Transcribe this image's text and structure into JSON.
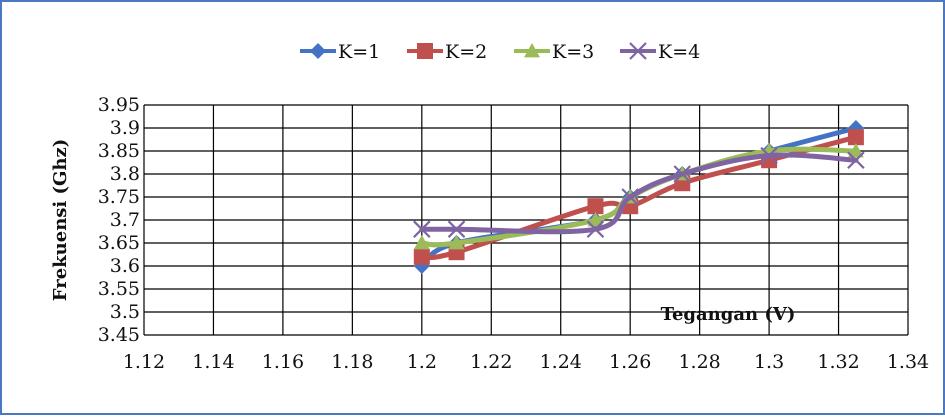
{
  "chart_data": {
    "type": "line",
    "title": "",
    "xlabel": "Tegangan (V)",
    "ylabel": "Frekuensi (Ghz)",
    "xlim": [
      1.12,
      1.34
    ],
    "ylim": [
      3.45,
      3.95
    ],
    "x_ticks": [
      "1.12",
      "1.14",
      "1.16",
      "1.18",
      "1.2",
      "1.22",
      "1.24",
      "1.26",
      "1.28",
      "1.3",
      "1.32",
      "1.34"
    ],
    "y_ticks": [
      "3.45",
      "3.5",
      "3.55",
      "3.6",
      "3.65",
      "3.7",
      "3.75",
      "3.8",
      "3.85",
      "3.9",
      "3.95"
    ],
    "grid": true,
    "legend_position": "top",
    "series": [
      {
        "name": "K=1",
        "color": "#4472c4",
        "marker": "diamond",
        "x": [
          1.2,
          1.21,
          1.25,
          1.26,
          1.275,
          1.3,
          1.325
        ],
        "y": [
          3.6,
          3.65,
          3.7,
          3.75,
          3.8,
          3.85,
          3.9
        ]
      },
      {
        "name": "K=2",
        "color": "#c0504d",
        "marker": "square",
        "x": [
          1.2,
          1.21,
          1.25,
          1.26,
          1.275,
          1.3,
          1.325
        ],
        "y": [
          3.62,
          3.63,
          3.73,
          3.73,
          3.78,
          3.83,
          3.88
        ]
      },
      {
        "name": "K=3",
        "color": "#9bbb59",
        "marker": "triangle",
        "x": [
          1.2,
          1.21,
          1.25,
          1.26,
          1.275,
          1.3,
          1.325
        ],
        "y": [
          3.65,
          3.65,
          3.7,
          3.75,
          3.8,
          3.85,
          3.85
        ]
      },
      {
        "name": "K=4",
        "color": "#8064a2",
        "marker": "x",
        "x": [
          1.2,
          1.21,
          1.25,
          1.26,
          1.275,
          1.3,
          1.325
        ],
        "y": [
          3.68,
          3.68,
          3.68,
          3.75,
          3.8,
          3.84,
          3.83
        ]
      }
    ]
  }
}
